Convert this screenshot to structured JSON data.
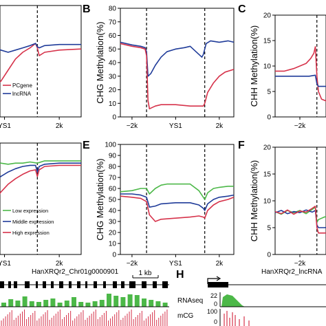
{
  "colors": {
    "red": "#d6324a",
    "blue": "#1f3b99",
    "green": "#4cb848",
    "axis": "#000000",
    "track_green": "#4cb848",
    "track_red": "#d6324a"
  },
  "panel_letters": [
    "B",
    "C",
    "E",
    "F",
    "H"
  ],
  "chart_data": [
    {
      "id": "A",
      "type": "line",
      "xlabel": "YS1",
      "xticks": [
        "YS1",
        "2k"
      ],
      "xtick_pos": [
        0.5,
        2.0
      ],
      "xlim": [
        0,
        2.6
      ],
      "ylim": [
        0,
        100
      ],
      "yticks": [],
      "ylabel": "",
      "boundaries": [
        1.4
      ],
      "legend": {
        "position": "bottom-left",
        "entries": [
          "PCgene",
          "lncRNA"
        ]
      },
      "series": [
        {
          "name": "PCgene",
          "color": "red",
          "x": [
            0,
            0.1,
            0.2,
            0.3,
            0.4,
            0.6,
            0.8,
            1.0,
            1.2,
            1.35,
            1.4,
            1.45,
            1.6,
            2.0,
            2.6
          ],
          "y": [
            80,
            50,
            35,
            30,
            32,
            42,
            52,
            58,
            62,
            66,
            62,
            55,
            58,
            60,
            61
          ]
        },
        {
          "name": "lncRNA",
          "color": "blue",
          "x": [
            0,
            0.2,
            0.4,
            0.6,
            0.8,
            1.0,
            1.2,
            1.35,
            1.4,
            1.45,
            1.6,
            2.0,
            2.6
          ],
          "y": [
            60,
            62,
            60,
            58,
            60,
            62,
            64,
            66,
            63,
            62,
            64,
            65,
            65
          ]
        }
      ]
    },
    {
      "id": "B",
      "type": "line",
      "xlabel": "",
      "xticks": [
        "−2k",
        "YS1",
        "2k"
      ],
      "xtick_pos": [
        0,
        1.5,
        3.0
      ],
      "xlim": [
        -0.4,
        3.5
      ],
      "ylim": [
        0,
        80
      ],
      "yticks": [
        0,
        10,
        20,
        30,
        40,
        50,
        60,
        70,
        80
      ],
      "ylabel": "CHG Methylation(%)",
      "boundaries": [
        0.5,
        2.5
      ],
      "series": [
        {
          "name": "",
          "color": "blue",
          "x": [
            -0.4,
            0,
            0.3,
            0.45,
            0.5,
            0.55,
            0.65,
            0.8,
            1.0,
            1.2,
            1.5,
            1.8,
            2.0,
            2.2,
            2.4,
            2.45,
            2.5,
            2.55,
            2.7,
            3.0,
            3.3,
            3.5
          ],
          "y": [
            55,
            53,
            52,
            51,
            48,
            30,
            32,
            38,
            44,
            48,
            50,
            51,
            52,
            48,
            44,
            46,
            50,
            54,
            56,
            55,
            56,
            55
          ]
        },
        {
          "name": "",
          "color": "red",
          "x": [
            -0.4,
            0,
            0.3,
            0.45,
            0.5,
            0.55,
            0.6,
            0.8,
            1.0,
            1.5,
            2.0,
            2.3,
            2.45,
            2.5,
            2.6,
            2.8,
            3.0,
            3.2,
            3.5
          ],
          "y": [
            54,
            52,
            51,
            50,
            45,
            12,
            6,
            8,
            9,
            9,
            8,
            8,
            8,
            10,
            18,
            25,
            30,
            33,
            35
          ]
        }
      ]
    },
    {
      "id": "C",
      "type": "line",
      "xlabel": "",
      "xticks": [
        "−2k"
      ],
      "xtick_pos": [
        0
      ],
      "xlim": [
        -0.8,
        1.2
      ],
      "ylim": [
        0,
        20
      ],
      "yticks": [
        0,
        5,
        10,
        15,
        20
      ],
      "ylabel": "CHH Methylation(%)",
      "boundaries": [
        0.55
      ],
      "series": [
        {
          "name": "",
          "color": "red",
          "x": [
            -0.8,
            -0.5,
            -0.2,
            0.0,
            0.2,
            0.35,
            0.45,
            0.5,
            0.55,
            0.6,
            0.7,
            0.9,
            1.2
          ],
          "y": [
            9,
            9,
            9.5,
            10,
            10.5,
            11.5,
            12.5,
            13.8,
            8,
            5,
            3.5,
            3,
            3
          ]
        },
        {
          "name": "",
          "color": "blue",
          "x": [
            -0.8,
            -0.5,
            -0.2,
            0.0,
            0.3,
            0.5,
            0.55,
            0.6,
            0.8,
            1.0,
            1.2
          ],
          "y": [
            8,
            8,
            8,
            8,
            8,
            8.2,
            6.5,
            6,
            6,
            6,
            6
          ]
        }
      ]
    },
    {
      "id": "D",
      "type": "line",
      "xlabel": "YS1",
      "xticks": [
        "YS1",
        "2k"
      ],
      "xtick_pos": [
        0.5,
        2.0
      ],
      "xlim": [
        0,
        2.6
      ],
      "ylim": [
        0,
        100
      ],
      "yticks": [],
      "ylabel": "",
      "boundaries": [
        1.4
      ],
      "legend": {
        "position": "bottom-left",
        "entries": [
          "Low expression",
          "Middle expression",
          "High expression"
        ]
      },
      "series": [
        {
          "name": "Low expression",
          "color": "green",
          "x": [
            0,
            0.2,
            0.4,
            0.6,
            0.8,
            1.0,
            1.2,
            1.4,
            1.6,
            2.0,
            2.6
          ],
          "y": [
            78,
            80,
            82,
            81,
            82,
            82,
            83,
            82,
            84,
            84,
            84
          ]
        },
        {
          "name": "Middle expression",
          "color": "blue",
          "x": [
            0,
            0.1,
            0.2,
            0.4,
            0.6,
            0.8,
            1.0,
            1.2,
            1.35,
            1.4,
            1.45,
            1.6,
            2.0,
            2.6
          ],
          "y": [
            50,
            58,
            64,
            70,
            74,
            77,
            79,
            80,
            80,
            74,
            79,
            81,
            82,
            82
          ]
        },
        {
          "name": "High expression",
          "color": "red",
          "x": [
            0,
            0.1,
            0.2,
            0.4,
            0.6,
            0.8,
            1.0,
            1.2,
            1.35,
            1.4,
            1.45,
            1.6,
            2.0,
            2.6
          ],
          "y": [
            22,
            35,
            46,
            56,
            63,
            68,
            72,
            75,
            76,
            70,
            76,
            79,
            80,
            80
          ]
        }
      ]
    },
    {
      "id": "E",
      "type": "line",
      "xlabel": "",
      "xticks": [
        "−2k",
        "YS1",
        "2k"
      ],
      "xtick_pos": [
        0,
        1.5,
        3.0
      ],
      "xlim": [
        -0.4,
        3.5
      ],
      "ylim": [
        0,
        100
      ],
      "yticks": [
        0,
        10,
        20,
        30,
        40,
        50,
        60,
        70,
        80,
        90,
        100
      ],
      "ylabel": "CHG Methylation(%)",
      "boundaries": [
        0.5,
        2.5
      ],
      "series": [
        {
          "name": "",
          "color": "green",
          "x": [
            -0.4,
            0,
            0.3,
            0.5,
            0.6,
            0.8,
            1.0,
            1.2,
            1.5,
            1.8,
            2.0,
            2.3,
            2.45,
            2.5,
            2.6,
            2.8,
            3.0,
            3.3,
            3.5
          ],
          "y": [
            57,
            58,
            60,
            60,
            55,
            60,
            63,
            64,
            64,
            64,
            64,
            58,
            52,
            50,
            56,
            60,
            61,
            62,
            62
          ]
        },
        {
          "name": "",
          "color": "blue",
          "x": [
            -0.4,
            0,
            0.3,
            0.5,
            0.6,
            0.8,
            1.0,
            1.5,
            2.0,
            2.3,
            2.45,
            2.5,
            2.6,
            2.8,
            3.0,
            3.3,
            3.5
          ],
          "y": [
            55,
            55,
            54,
            52,
            43,
            44,
            46,
            47,
            47,
            45,
            42,
            40,
            46,
            50,
            52,
            53,
            54
          ]
        },
        {
          "name": "",
          "color": "red",
          "x": [
            -0.4,
            0,
            0.3,
            0.5,
            0.6,
            0.8,
            1.0,
            1.5,
            2.0,
            2.3,
            2.45,
            2.5,
            2.6,
            2.8,
            3.0,
            3.3,
            3.5
          ],
          "y": [
            53,
            52,
            51,
            48,
            36,
            30,
            32,
            33,
            34,
            35,
            34,
            33,
            40,
            45,
            48,
            50,
            52
          ]
        }
      ]
    },
    {
      "id": "F",
      "type": "line",
      "xlabel": "",
      "xticks": [
        "−2k"
      ],
      "xtick_pos": [
        0
      ],
      "xlim": [
        -0.8,
        1.2
      ],
      "ylim": [
        0,
        20
      ],
      "yticks": [
        0,
        5,
        10,
        15,
        20
      ],
      "ylabel": "CHH Methylation(%)",
      "boundaries": [
        0.55
      ],
      "series": [
        {
          "name": "",
          "color": "green",
          "x": [
            -0.8,
            -0.6,
            -0.4,
            -0.2,
            0.0,
            0.2,
            0.4,
            0.5,
            0.55,
            0.6,
            0.8,
            1.0,
            1.2
          ],
          "y": [
            8,
            7.5,
            8.2,
            7.8,
            8.2,
            7.6,
            8.4,
            8.8,
            6,
            6.5,
            7,
            7.2,
            7.5
          ]
        },
        {
          "name": "",
          "color": "blue",
          "x": [
            -0.8,
            -0.6,
            -0.4,
            -0.2,
            0.0,
            0.2,
            0.4,
            0.5,
            0.55,
            0.6,
            0.8,
            1.0,
            1.2
          ],
          "y": [
            7.8,
            8.2,
            7.6,
            8.0,
            7.8,
            8.3,
            7.9,
            8.2,
            5.5,
            5,
            5,
            5.2,
            5.3
          ]
        },
        {
          "name": "",
          "color": "red",
          "x": [
            -0.8,
            -0.6,
            -0.4,
            -0.2,
            0.0,
            0.2,
            0.4,
            0.5,
            0.55,
            0.6,
            0.8,
            1.0,
            1.2
          ],
          "y": [
            8,
            7.6,
            8.3,
            7.5,
            8.1,
            7.9,
            8.6,
            9.0,
            5,
            4,
            4,
            4.1,
            4.2
          ]
        }
      ]
    }
  ],
  "browser_G": {
    "gene": "HanXRQr2_Chr01g0000901",
    "scale_label": "1 kb",
    "track_heights_pct": [
      0.3,
      0.55,
      0.45,
      0.75,
      0.4,
      0.35,
      0.5,
      0.6,
      0.3,
      0.45,
      0.7,
      0.35,
      0.3,
      0.4,
      0.5,
      0.95,
      0.8,
      0.7,
      0.9,
      0.85,
      0.6,
      0.5,
      0.4,
      0.3
    ]
  },
  "browser_H": {
    "gene": "HanXRQr2_lncRNA",
    "tracks": [
      {
        "label": "RNAseq",
        "scale_top": "22",
        "scale_bottom": "0"
      },
      {
        "label": "mCG",
        "scale_top": "100",
        "scale_bottom": "0"
      }
    ]
  }
}
